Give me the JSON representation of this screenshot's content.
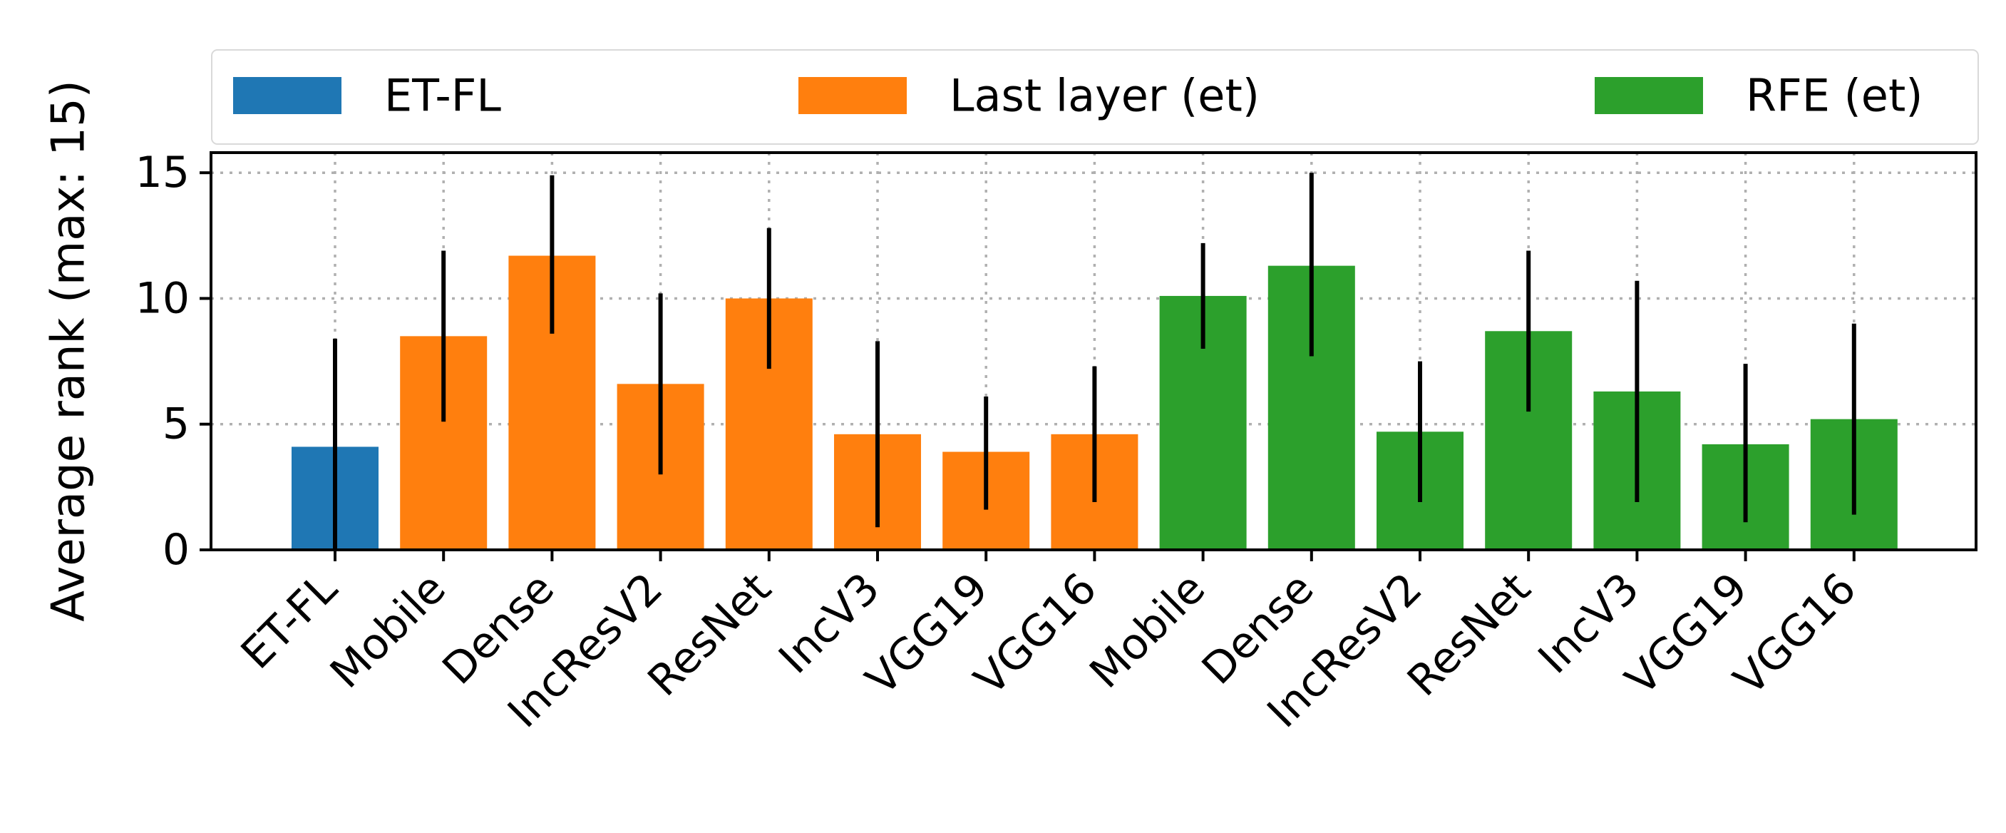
{
  "chart_data": {
    "type": "bar",
    "title": "",
    "xlabel": "",
    "ylabel": "Average rank (max: 15)",
    "ylim": [
      0,
      15.8
    ],
    "yticks": [
      0,
      5,
      10,
      15
    ],
    "grid": true,
    "grid_style": "dotted",
    "legend_position": "top",
    "legend": [
      {
        "name": "ET-FL",
        "color": "#1f77b4"
      },
      {
        "name": "Last layer (et)",
        "color": "#ff7f0e"
      },
      {
        "name": "RFE (et)",
        "color": "#2ca02c"
      }
    ],
    "categories": [
      "ET-FL",
      "Mobile",
      "Dense",
      "IncResV2",
      "ResNet",
      "IncV3",
      "VGG19",
      "VGG16",
      "Mobile",
      "Dense",
      "IncResV2",
      "ResNet",
      "IncV3",
      "VGG19",
      "VGG16"
    ],
    "group": [
      0,
      1,
      1,
      1,
      1,
      1,
      1,
      1,
      2,
      2,
      2,
      2,
      2,
      2,
      2
    ],
    "values": [
      4.1,
      8.5,
      11.7,
      6.6,
      10.0,
      4.6,
      3.9,
      4.6,
      10.1,
      11.3,
      4.7,
      8.7,
      6.3,
      4.2,
      5.2
    ],
    "error_low": [
      0.0,
      5.1,
      8.6,
      3.0,
      7.2,
      0.9,
      1.6,
      1.9,
      8.0,
      7.7,
      1.9,
      5.5,
      1.9,
      1.1,
      1.4
    ],
    "error_high": [
      8.4,
      11.9,
      14.9,
      10.2,
      12.8,
      8.3,
      6.1,
      7.3,
      12.2,
      15.0,
      7.5,
      11.9,
      10.7,
      7.4,
      9.0
    ]
  }
}
